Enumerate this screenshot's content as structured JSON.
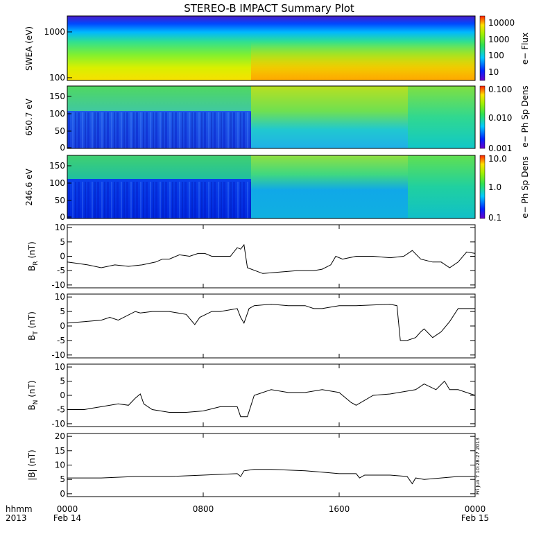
{
  "title": "STEREO-B IMPACT Summary Plot",
  "time_axis": {
    "row1_label": "hhmm",
    "row2_label": "2013",
    "ticks": [
      {
        "t": 0,
        "hhmm": "0000",
        "date": "Feb 14"
      },
      {
        "t": 8,
        "hhmm": "0800",
        "date": ""
      },
      {
        "t": 16,
        "hhmm": "1600",
        "date": ""
      },
      {
        "t": 24,
        "hhmm": "0000",
        "date": "Feb 15"
      }
    ],
    "range_hours": [
      0,
      24
    ]
  },
  "stamp": "Fri Jun  7 10:28:27 2013",
  "panels": {
    "swea": {
      "ylabel": "SWEA (eV)",
      "yticks": [
        "1000",
        "100"
      ],
      "cbar_label": "e− Flux",
      "cbar_ticks": [
        "10000",
        "1000",
        "100",
        "10"
      ],
      "scale": "log"
    },
    "pad650": {
      "ylabel": "650.7 eV",
      "yticks": [
        "150",
        "100",
        "50",
        "0"
      ],
      "cbar_label": "e− Ph Sp Dens",
      "cbar_ticks": [
        "0.100",
        "0.010",
        "0.001"
      ],
      "scale": "log"
    },
    "pad246": {
      "ylabel": "246.6 eV",
      "yticks": [
        "150",
        "100",
        "50",
        "0"
      ],
      "cbar_label": "e− Ph Sp Dens",
      "cbar_ticks": [
        "10.0",
        "1.0",
        "0.1"
      ],
      "scale": "log"
    }
  },
  "chart_data": [
    {
      "type": "line",
      "name": "BR",
      "ylabel_main": "B",
      "ylabel_sub": "R",
      "ylabel_unit": "(nT)",
      "ylim": [
        -11,
        11
      ],
      "yticks": [
        "10",
        "5",
        "0",
        "-5",
        "-10"
      ],
      "x": [
        0,
        0.6,
        1.2,
        2,
        2.8,
        3.6,
        4.4,
        5.2,
        5.6,
        6,
        6.6,
        7.2,
        7.7,
        8.1,
        8.5,
        9,
        9.6,
        10,
        10.2,
        10.4,
        10.6,
        11.5,
        12.5,
        13.5,
        14.5,
        15,
        15.5,
        15.8,
        16.2,
        17,
        18,
        19,
        19.8,
        20.3,
        20.8,
        21.5,
        22,
        22.5,
        23,
        23.5,
        24
      ],
      "y": [
        -2,
        -2.5,
        -3,
        -4,
        -3,
        -3.5,
        -3,
        -2,
        -1,
        -1,
        0.5,
        0,
        1,
        1,
        0,
        0,
        0,
        3,
        2.5,
        4,
        -4,
        -6,
        -5.5,
        -5,
        -5,
        -4.5,
        -3,
        0,
        -1,
        0,
        0,
        -0.5,
        0,
        2,
        -1,
        -2,
        -2,
        -4,
        -2,
        1.5,
        1
      ]
    },
    {
      "type": "line",
      "name": "BT",
      "ylabel_main": "B",
      "ylabel_sub": "T",
      "ylabel_unit": "(nT)",
      "ylim": [
        -11,
        11
      ],
      "yticks": [
        "10",
        "5",
        "0",
        "-5",
        "-10"
      ],
      "x": [
        0,
        1,
        2,
        2.5,
        3,
        4,
        4.3,
        5,
        6,
        7,
        7.5,
        7.8,
        8.5,
        9,
        10,
        10.2,
        10.4,
        10.7,
        11,
        12,
        13,
        14,
        14.5,
        15,
        15.5,
        16,
        17,
        19,
        19.4,
        19.6,
        20,
        20.5,
        20.8,
        21,
        21.5,
        22,
        22.5,
        23,
        24
      ],
      "y": [
        1,
        1.5,
        2,
        3,
        2,
        5,
        4.5,
        5,
        5,
        4,
        0.5,
        3,
        5,
        5,
        6,
        3,
        1,
        6,
        7,
        7.5,
        7,
        7,
        6,
        6,
        6.5,
        7,
        7,
        7.5,
        7,
        -5,
        -5,
        -4,
        -2,
        -1,
        -4,
        -2,
        1.5,
        6,
        6
      ]
    },
    {
      "type": "line",
      "name": "BN",
      "ylabel_main": "B",
      "ylabel_sub": "N",
      "ylabel_unit": "(nT)",
      "ylim": [
        -11,
        11
      ],
      "yticks": [
        "10",
        "5",
        "0",
        "-5",
        "-10"
      ],
      "x": [
        0,
        1,
        1.5,
        2,
        3,
        3.6,
        4,
        4.3,
        4.5,
        5,
        6,
        7,
        8,
        9,
        10,
        10.2,
        10.6,
        11,
        12,
        13,
        14,
        15,
        16,
        16.7,
        17,
        18,
        19,
        20,
        20.5,
        21,
        21.7,
        22.2,
        22.5,
        23,
        24
      ],
      "y": [
        -5,
        -5,
        -4.5,
        -4,
        -3,
        -3.5,
        -1,
        0.5,
        -3,
        -5,
        -6,
        -6,
        -5.5,
        -4,
        -4,
        -7.5,
        -7.5,
        0,
        2,
        1,
        1,
        2,
        1,
        -2.5,
        -3.5,
        0,
        0.5,
        1.5,
        2,
        4,
        2,
        5,
        2,
        2,
        0
      ]
    },
    {
      "type": "line",
      "name": "|B|",
      "ylabel_main": "|B|",
      "ylabel_sub": "",
      "ylabel_unit": "(nT)",
      "ylim": [
        -1,
        21
      ],
      "yticks": [
        "20",
        "15",
        "10",
        "5",
        "0"
      ],
      "x": [
        0,
        2,
        4,
        6,
        8,
        10,
        10.2,
        10.4,
        11,
        12,
        14,
        15,
        16,
        17,
        17.2,
        17.5,
        18,
        19,
        20,
        20.3,
        20.5,
        21,
        22,
        23,
        24
      ],
      "y": [
        5.5,
        5.5,
        6,
        6,
        6.5,
        7,
        6,
        8,
        8.5,
        8.5,
        8,
        7.5,
        7,
        7,
        5.5,
        6.5,
        6.5,
        6.5,
        6,
        3.5,
        5.5,
        5,
        5.5,
        6,
        6
      ]
    }
  ]
}
